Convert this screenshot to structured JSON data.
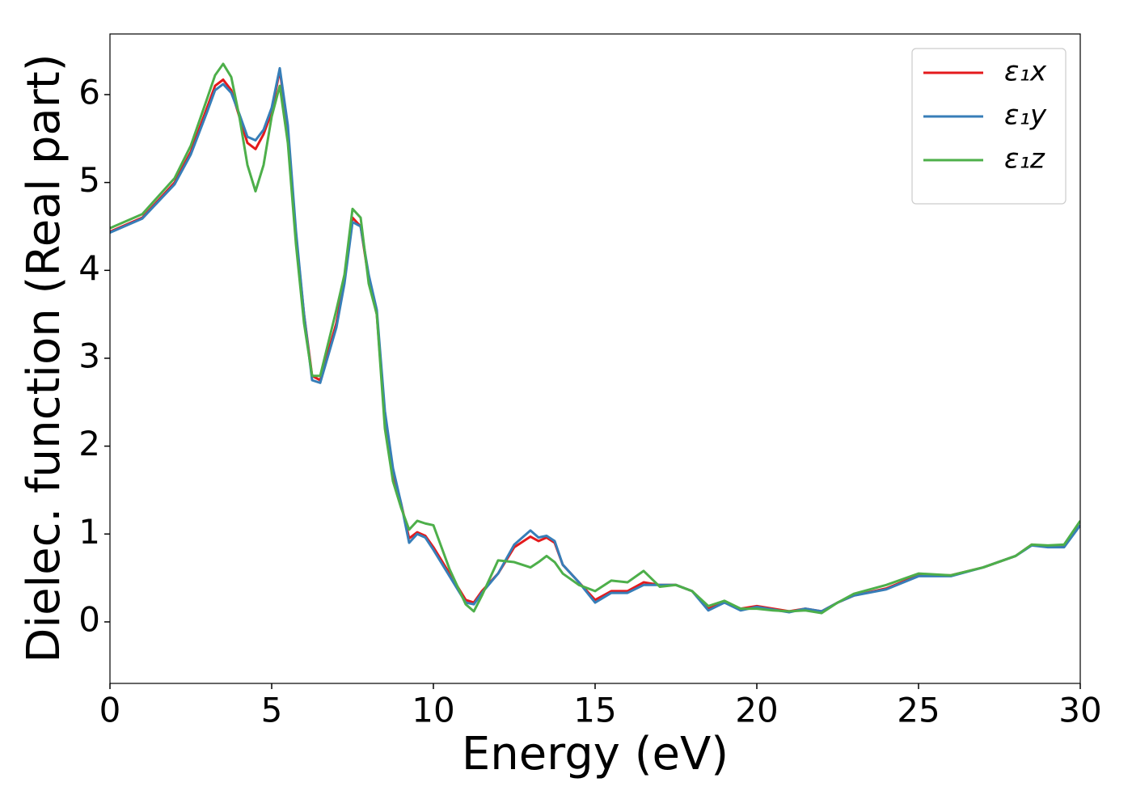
{
  "chart_data": {
    "type": "line",
    "xlabel": "Energy (eV)",
    "ylabel": "Dielec. function (Real part)",
    "x": [
      0,
      1,
      2,
      2.5,
      3,
      3.25,
      3.5,
      3.75,
      4,
      4.25,
      4.5,
      4.75,
      5,
      5.25,
      5.5,
      5.75,
      6,
      6.25,
      6.5,
      7,
      7.25,
      7.5,
      7.75,
      8,
      8.25,
      8.5,
      8.75,
      9,
      9.25,
      9.5,
      9.75,
      10,
      10.5,
      11,
      11.25,
      11.5,
      12,
      12.5,
      13,
      13.25,
      13.5,
      13.75,
      14,
      14.5,
      15,
      15.5,
      16,
      16.5,
      17,
      17.5,
      18,
      18.5,
      19,
      19.5,
      20,
      20.5,
      21,
      21.5,
      22,
      22.5,
      23,
      24,
      25,
      26,
      27,
      28,
      28.5,
      29,
      29.5,
      30
    ],
    "series": [
      {
        "name": "ε₁x",
        "color": "#e41a1c",
        "values": [
          4.44,
          4.6,
          5.0,
          5.35,
          5.85,
          6.1,
          6.17,
          6.05,
          5.75,
          5.45,
          5.38,
          5.55,
          5.8,
          6.28,
          5.6,
          4.4,
          3.5,
          2.8,
          2.75,
          3.4,
          3.9,
          4.6,
          4.5,
          3.9,
          3.5,
          2.3,
          1.7,
          1.35,
          0.95,
          1.02,
          0.98,
          0.85,
          0.55,
          0.25,
          0.22,
          0.35,
          0.55,
          0.85,
          0.97,
          0.92,
          0.96,
          0.9,
          0.65,
          0.45,
          0.25,
          0.35,
          0.35,
          0.45,
          0.42,
          0.42,
          0.35,
          0.15,
          0.22,
          0.15,
          0.18,
          0.15,
          0.12,
          0.15,
          0.12,
          0.22,
          0.3,
          0.38,
          0.53,
          0.53,
          0.62,
          0.75,
          0.88,
          0.86,
          0.87,
          1.1
        ]
      },
      {
        "name": "ε₁y",
        "color": "#377eb8",
        "values": [
          4.43,
          4.59,
          4.98,
          5.32,
          5.8,
          6.05,
          6.12,
          6.02,
          5.78,
          5.52,
          5.48,
          5.6,
          5.85,
          6.3,
          5.65,
          4.45,
          3.5,
          2.75,
          2.72,
          3.35,
          3.85,
          4.55,
          4.5,
          3.95,
          3.55,
          2.4,
          1.75,
          1.35,
          0.9,
          1.0,
          0.96,
          0.82,
          0.52,
          0.22,
          0.2,
          0.33,
          0.55,
          0.88,
          1.04,
          0.96,
          0.98,
          0.92,
          0.65,
          0.45,
          0.22,
          0.33,
          0.33,
          0.42,
          0.42,
          0.42,
          0.35,
          0.13,
          0.22,
          0.13,
          0.17,
          0.14,
          0.11,
          0.15,
          0.12,
          0.22,
          0.3,
          0.37,
          0.52,
          0.52,
          0.62,
          0.75,
          0.87,
          0.85,
          0.85,
          1.1
        ]
      },
      {
        "name": "ε₁z",
        "color": "#4daf4a",
        "values": [
          4.48,
          4.64,
          5.05,
          5.42,
          5.95,
          6.22,
          6.35,
          6.2,
          5.75,
          5.2,
          4.9,
          5.2,
          5.75,
          6.1,
          5.45,
          4.3,
          3.4,
          2.8,
          2.8,
          3.55,
          3.95,
          4.7,
          4.6,
          3.85,
          3.5,
          2.2,
          1.6,
          1.3,
          1.05,
          1.15,
          1.12,
          1.1,
          0.6,
          0.2,
          0.12,
          0.3,
          0.7,
          0.68,
          0.62,
          0.68,
          0.75,
          0.68,
          0.55,
          0.42,
          0.35,
          0.47,
          0.45,
          0.58,
          0.4,
          0.42,
          0.35,
          0.18,
          0.24,
          0.15,
          0.15,
          0.13,
          0.12,
          0.13,
          0.1,
          0.22,
          0.32,
          0.42,
          0.55,
          0.53,
          0.62,
          0.75,
          0.88,
          0.87,
          0.88,
          1.15
        ]
      }
    ],
    "xlim": [
      0,
      30
    ],
    "xticks": [
      0,
      5,
      10,
      15,
      20,
      25,
      30
    ],
    "ylim": [
      -0.7,
      6.69
    ],
    "yticks": [
      0,
      1,
      2,
      3,
      4,
      5,
      6
    ],
    "grid": false,
    "legend": "upper right"
  }
}
